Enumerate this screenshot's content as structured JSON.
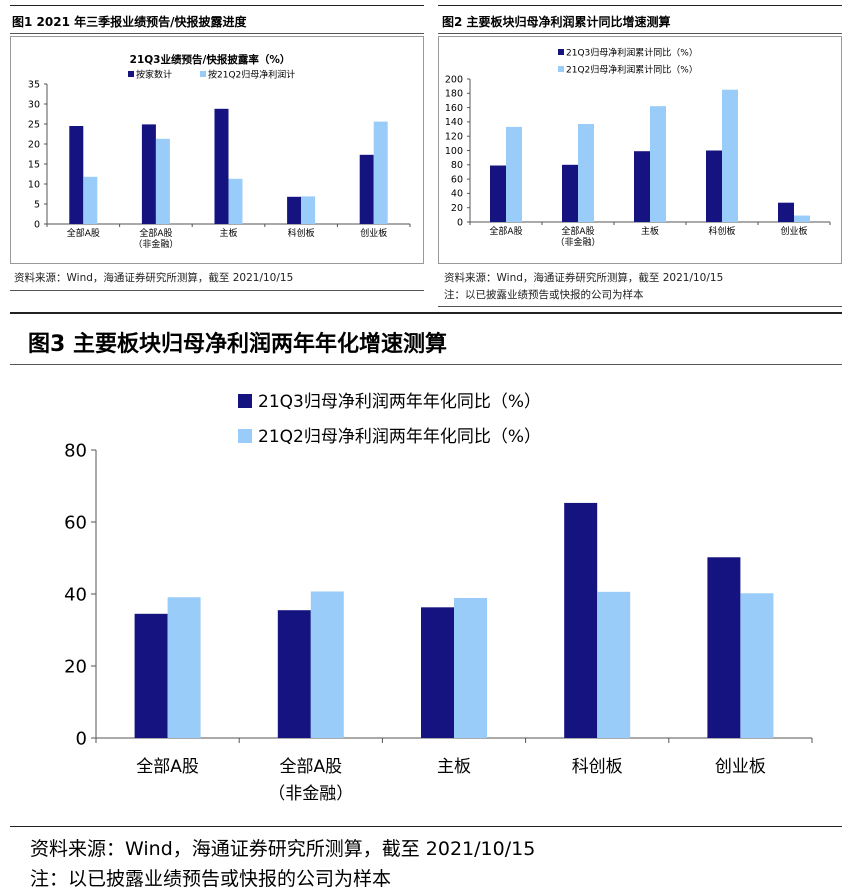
{
  "fig1": {
    "title": "图1  2021 年三季报业绩预告/快报披露进度",
    "source": "资料来源：Wind，海通证券研究所测算，截至 2021/10/15"
  },
  "fig2": {
    "title": "图2  主要板块归母净利润累计同比增速测算",
    "source": "资料来源：Wind，海通证券研究所测算，截至 2021/10/15",
    "note": "注：以已披露业绩预告或快报的公司为样本"
  },
  "fig3": {
    "title": "图3  主要板块归母净利润两年年化增速测算",
    "source": "资料来源：Wind，海通证券研究所测算，截至 2021/10/15",
    "note": "注：以已披露业绩预告或快报的公司为样本"
  },
  "colors": {
    "dark": "#14137f",
    "light": "#99ccf9"
  },
  "chart_data": [
    {
      "type": "bar",
      "title": "21Q3业绩预告/快报披露率（%）",
      "categories": [
        [
          "全部A股"
        ],
        [
          "全部A股",
          "（非金融）"
        ],
        [
          "主板"
        ],
        [
          "科创板"
        ],
        [
          "创业板"
        ]
      ],
      "series": [
        {
          "name": "按家数计",
          "values": [
            24.5,
            24.9,
            28.8,
            6.8,
            17.3
          ]
        },
        {
          "name": "按21Q2归母净利润计",
          "values": [
            11.8,
            21.3,
            11.3,
            6.9,
            25.6
          ]
        }
      ],
      "ylim": [
        0,
        35
      ],
      "yticks": [
        "0",
        "5",
        "10",
        "15",
        "20",
        "25",
        "30",
        "35"
      ],
      "legend": "top-center",
      "grid": false
    },
    {
      "type": "bar",
      "title": "",
      "categories": [
        [
          "全部A股"
        ],
        [
          "全部A股",
          "（非金融）"
        ],
        [
          "主板"
        ],
        [
          "科创板"
        ],
        [
          "创业板"
        ]
      ],
      "series": [
        {
          "name": "21Q3归母净利润累计同比（%）",
          "values": [
            79,
            80,
            99,
            100,
            27
          ]
        },
        {
          "name": "21Q2归母净利润累计同比（%）",
          "values": [
            133,
            137,
            162,
            185,
            9
          ]
        }
      ],
      "ylim": [
        0,
        200
      ],
      "yticks": [
        "0",
        "20",
        "40",
        "60",
        "80",
        "100",
        "120",
        "140",
        "160",
        "180",
        "200"
      ],
      "legend": "top-left",
      "grid": false
    },
    {
      "type": "bar",
      "title": "",
      "categories": [
        [
          "全部A股"
        ],
        [
          "全部A股",
          "（非金融）"
        ],
        [
          "主板"
        ],
        [
          "科创板"
        ],
        [
          "创业板"
        ]
      ],
      "series": [
        {
          "name": "21Q3归母净利润两年年化同比（%）",
          "values": [
            34.5,
            35.5,
            36.3,
            65.3,
            50.2
          ]
        },
        {
          "name": "21Q2归母净利润两年年化同比（%）",
          "values": [
            39.1,
            40.7,
            38.9,
            40.6,
            40.2
          ]
        }
      ],
      "ylim": [
        0,
        80
      ],
      "yticks": [
        "0",
        "20",
        "40",
        "60",
        "80"
      ],
      "legend": "top-left",
      "grid": false
    }
  ]
}
